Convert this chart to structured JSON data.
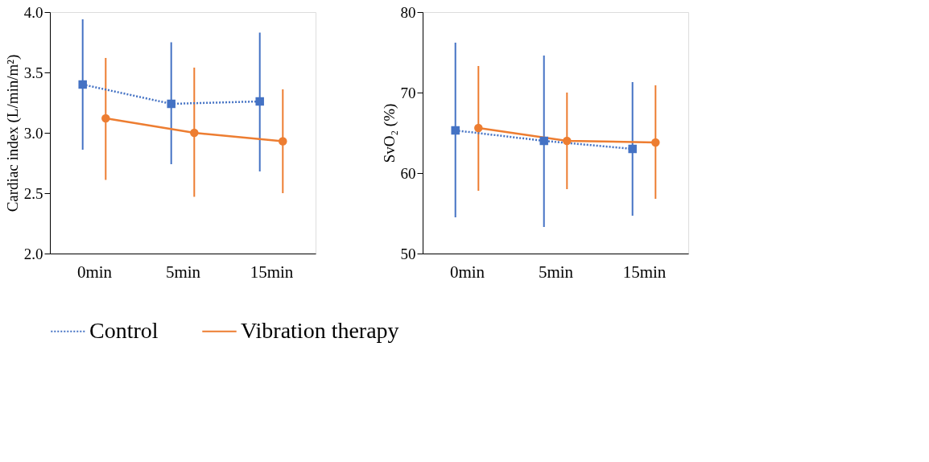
{
  "chart_data": [
    {
      "type": "line",
      "ylabel": "Cardiac index (L/min/m²)",
      "categories": [
        "0min",
        "5min",
        "15min"
      ],
      "ylim": [
        2.0,
        4.0
      ],
      "yticks": [
        {
          "value": 2,
          "label": "2.0"
        },
        {
          "value": 2.5,
          "label": "2.5"
        },
        {
          "value": 3,
          "label": "3.0"
        },
        {
          "value": 3.5,
          "label": "3.5"
        },
        {
          "value": 4,
          "label": "4.0"
        }
      ],
      "grid": false,
      "legend": "bottom",
      "series": [
        {
          "name": "Control",
          "color": "#4472c4",
          "line_style": "dotted",
          "marker": "square",
          "values": [
            3.4,
            3.24,
            3.26
          ],
          "errors": [
            [
              2.86,
              3.94
            ],
            [
              2.74,
              3.75
            ],
            [
              2.68,
              3.83
            ]
          ]
        },
        {
          "name": "Vibration therapy",
          "color": "#ed7d31",
          "line_style": "solid",
          "marker": "circle",
          "values": [
            3.12,
            3.0,
            2.93
          ],
          "errors": [
            [
              2.61,
              3.62
            ],
            [
              2.47,
              3.54
            ],
            [
              2.5,
              3.36
            ]
          ]
        }
      ]
    },
    {
      "type": "line",
      "ylabel": "SvO₂ (%)",
      "categories": [
        "0min",
        "5min",
        "15min"
      ],
      "ylim": [
        50,
        80
      ],
      "yticks": [
        50,
        60,
        70,
        80
      ],
      "grid": false,
      "series": [
        {
          "name": "Control",
          "color": "#4472c4",
          "line_style": "dotted",
          "marker": "square",
          "values": [
            65.3,
            64.0,
            63.0
          ],
          "errors": [
            [
              54.5,
              76.2
            ],
            [
              53.3,
              74.6
            ],
            [
              54.7,
              71.3
            ]
          ]
        },
        {
          "name": "Vibration therapy",
          "color": "#ed7d31",
          "line_style": "solid",
          "marker": "circle",
          "values": [
            65.6,
            64.0,
            63.8
          ],
          "errors": [
            [
              57.8,
              73.3
            ],
            [
              58.0,
              70.0
            ],
            [
              56.8,
              70.9
            ]
          ]
        }
      ]
    }
  ]
}
